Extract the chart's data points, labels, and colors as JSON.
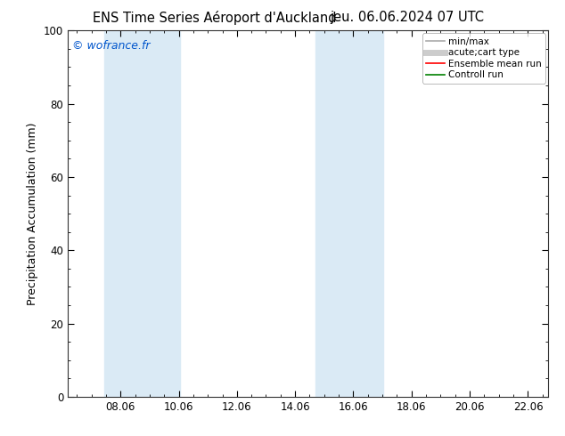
{
  "title_left": "ENS Time Series Aéroport d'Auckland",
  "title_right": "jeu. 06.06.2024 07 UTC",
  "ylabel": "Precipitation Accumulation (mm)",
  "watermark": "© wofrance.fr",
  "xlim": [
    6.25,
    22.75
  ],
  "ylim": [
    0,
    100
  ],
  "xticks": [
    8.06,
    10.06,
    12.06,
    14.06,
    16.06,
    18.06,
    20.06,
    22.06
  ],
  "xtick_labels": [
    "08.06",
    "10.06",
    "12.06",
    "14.06",
    "16.06",
    "18.06",
    "20.06",
    "22.06"
  ],
  "yticks": [
    0,
    20,
    40,
    60,
    80,
    100
  ],
  "shaded_bands": [
    {
      "xmin": 7.5,
      "xmax": 10.1,
      "color": "#daeaf5"
    },
    {
      "xmin": 14.75,
      "xmax": 17.1,
      "color": "#daeaf5"
    }
  ],
  "legend_entries": [
    {
      "label": "min/max",
      "color": "#aaaaaa",
      "lw": 1.2,
      "style": "line"
    },
    {
      "label": "acute;cart type",
      "color": "#cccccc",
      "lw": 5,
      "style": "line"
    },
    {
      "label": "Ensemble mean run",
      "color": "#ff0000",
      "lw": 1.2,
      "style": "line"
    },
    {
      "label": "Controll run",
      "color": "#008000",
      "lw": 1.2,
      "style": "line"
    }
  ],
  "background_color": "#ffffff",
  "plot_bg_color": "#ffffff",
  "title_fontsize": 10.5,
  "tick_fontsize": 8.5,
  "ylabel_fontsize": 9,
  "watermark_color": "#0055cc",
  "watermark_fontsize": 9,
  "legend_fontsize": 7.5
}
